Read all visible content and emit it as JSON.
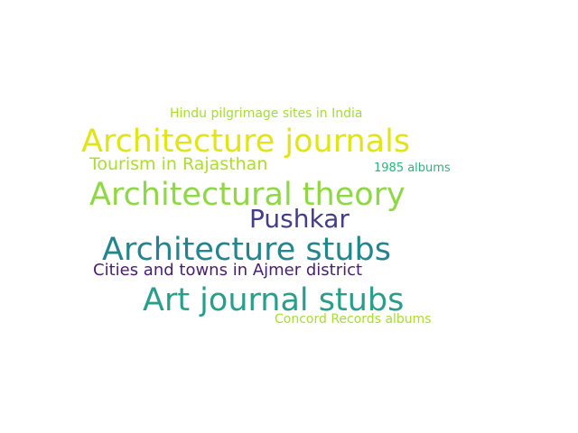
{
  "words": [
    {
      "id": "hindu",
      "text": "Hindu pilgrimage sites in India",
      "color": "#a5db36"
    },
    {
      "id": "journals",
      "text": "Architecture journals",
      "color": "#e2e418"
    },
    {
      "id": "tourism",
      "text": "Tourism in Rajasthan",
      "color": "#addc30"
    },
    {
      "id": "1985",
      "text": "1985 albums",
      "color": "#2db27d"
    },
    {
      "id": "theory",
      "text": "Architectural theory",
      "color": "#8fd744"
    },
    {
      "id": "pushkar",
      "text": "Pushkar",
      "color": "#433e85"
    },
    {
      "id": "stubs",
      "text": "Architecture stubs",
      "color": "#25858e"
    },
    {
      "id": "ajmer",
      "text": "Cities and towns in Ajmer district",
      "color": "#481f70"
    },
    {
      "id": "artstubs",
      "text": "Art journal stubs",
      "color": "#2a9d8b"
    },
    {
      "id": "concord",
      "text": "Concord Records albums",
      "color": "#a8db34"
    }
  ]
}
